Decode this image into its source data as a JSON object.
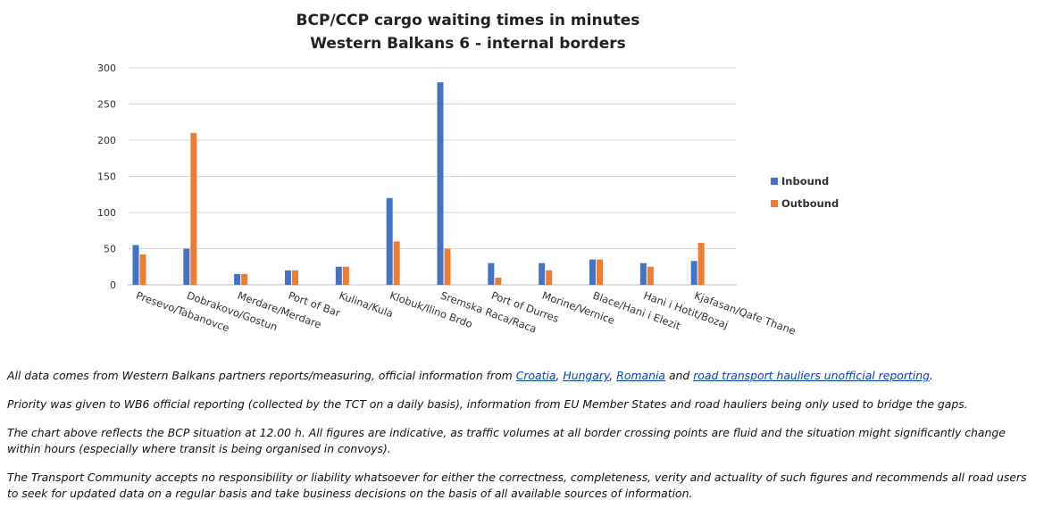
{
  "chart_data": {
    "type": "bar",
    "title": "BCP/CCP cargo waiting times in minutes",
    "subtitle": "Western Balkans 6 - internal borders",
    "categories": [
      "Presevo/Tabanovce",
      "Dobrakovo/Gostun",
      "Merdare/Merdare",
      "Port of Bar",
      "Kulina/Kula",
      "Klobuk/Ilino Brdo",
      "Sremska Raca/Raca",
      "Port of Durres",
      "Morine/Vernice",
      "Blace/Hani i Elezit",
      "Hani i Hotit/Bozaj",
      "Kjafasan/Qafe Thane"
    ],
    "series": [
      {
        "name": "Inbound",
        "color": "#4472c4",
        "values": [
          55,
          50,
          15,
          20,
          25,
          120,
          280,
          30,
          30,
          35,
          30,
          33
        ]
      },
      {
        "name": "Outbound",
        "color": "#ed7d31",
        "values": [
          42,
          210,
          15,
          20,
          25,
          60,
          50,
          10,
          20,
          35,
          25,
          58
        ]
      }
    ],
    "ylim": [
      0,
      300
    ],
    "yticks": [
      "0",
      "50",
      "100",
      "150",
      "200",
      "250",
      "300"
    ],
    "grid": true,
    "legend_position": "right"
  },
  "notes": {
    "p1_prefix": "All data comes from Western Balkans partners reports/measuring, official information from ",
    "link_croatia": "Croatia",
    "sep1": ", ",
    "link_hungary": "Hungary",
    "sep2": ", ",
    "link_romania": "Romania",
    "p1_and": " and ",
    "link_hauliers": "road transport hauliers unofficial reporting",
    "p1_suffix": ".",
    "p2": "Priority was given to WB6 official reporting (collected by the TCT on a daily basis), information from EU Member States and road hauliers being only used to bridge the gaps.",
    "p3": "The chart above reflects the BCP situation at 12.00 h. All figures are indicative, as traffic volumes at all border crossing points are fluid and the situation might significantly change within hours (especially where transit is being organised in convoys).",
    "p4": "The Transport Community accepts no responsibility or liability whatsoever for either the correctness, completeness, verity and actuality of such figures and recommends all road users to seek for updated data on a regular basis and take business decisions on the basis of all available sources of information."
  }
}
